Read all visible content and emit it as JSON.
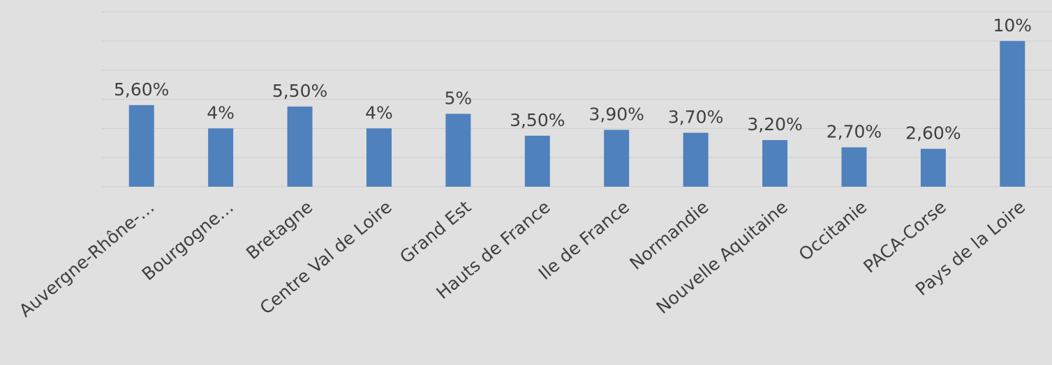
{
  "chart_data": {
    "type": "bar",
    "categories": [
      "Auvergne-Rhône-…",
      "Bourgogne…",
      "Bretagne",
      "Centre Val de Loire",
      "Grand Est",
      "Hauts de France",
      "Ile de France",
      "Normandie",
      "Nouvelle Aquitaine",
      "Occitanie",
      "PACA-Corse",
      "Pays de la Loire"
    ],
    "values": [
      5.6,
      4,
      5.5,
      4,
      5,
      3.5,
      3.9,
      3.7,
      3.2,
      2.7,
      2.6,
      10
    ],
    "value_labels": [
      "5,60%",
      "4%",
      "5,50%",
      "4%",
      "5%",
      "3,50%",
      "3,90%",
      "3,70%",
      "3,20%",
      "2,70%",
      "2,60%",
      "10%"
    ],
    "color": "#4f81bd",
    "ylim": [
      0,
      12
    ],
    "yticks": [
      0,
      2,
      4,
      6,
      8,
      10,
      12
    ],
    "grid": true
  }
}
